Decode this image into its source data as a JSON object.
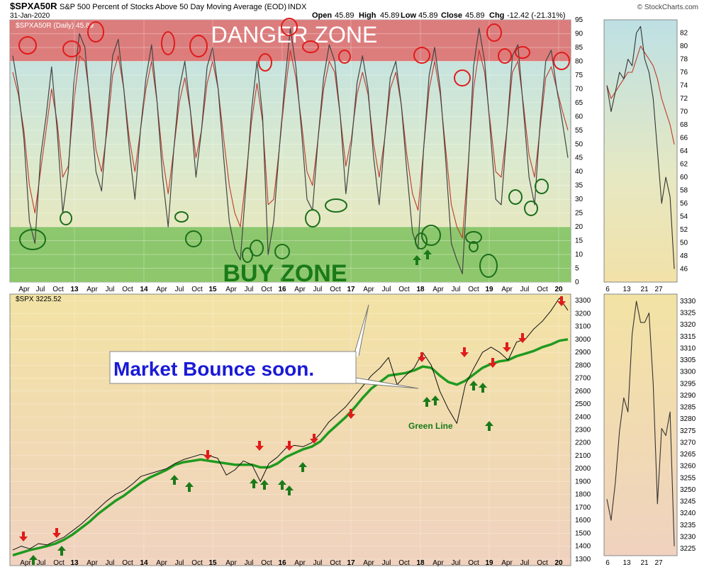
{
  "header": {
    "symbol": "$SPXA50R",
    "description": "S&P 500 Percent of Stocks Above 50 Day Moving Average (EOD)",
    "exchange": "INDX",
    "date": "31-Jan-2020",
    "open_label": "Open",
    "open": "45.89",
    "high_label": "High",
    "high": "45.89",
    "low_label": "Low",
    "low": "45.89",
    "close_label": "Close",
    "close": "45.89",
    "chg_label": "Chg",
    "chg": "-12.42 (-21.31%)",
    "watermark": "© StockCharts.com"
  },
  "chart_data": [
    {
      "type": "line",
      "panel": "top-main",
      "legend": "$SPXA50R (Daily) 45.89",
      "ylim": [
        0,
        95
      ],
      "yticks": [
        0,
        5,
        10,
        15,
        20,
        25,
        30,
        35,
        40,
        45,
        50,
        55,
        60,
        65,
        70,
        75,
        80,
        85,
        90,
        95
      ],
      "x_year_labels": [
        "13",
        "14",
        "15",
        "16",
        "17",
        "18",
        "19",
        "20"
      ],
      "x_month_labels": [
        "Apr",
        "Jul",
        "Oct",
        "Apr",
        "Jul",
        "Oct",
        "Apr",
        "Jul",
        "Oct",
        "Apr",
        "Jul",
        "Oct",
        "Apr",
        "Jul",
        "Oct",
        "Apr",
        "Jul",
        "Oct",
        "Apr",
        "Jul",
        "Oct",
        "Apr",
        "Jul",
        "Oct",
        "Apr",
        "Jul",
        "Oct"
      ],
      "zones": [
        {
          "label": "DANGER ZONE",
          "from": 80,
          "to": 95,
          "color": "#e06b6b"
        },
        {
          "label": "BUY ZONE",
          "from": 0,
          "to": 20,
          "color": "#7cc15f"
        }
      ],
      "series": [
        {
          "values": [
            82,
            70,
            52,
            22,
            14,
            45,
            60,
            78,
            55,
            25,
            40,
            72,
            90,
            85,
            62,
            40,
            33,
            58,
            82,
            88,
            70,
            48,
            30,
            55,
            74,
            86,
            65,
            38,
            20,
            48,
            70,
            80,
            62,
            38,
            55,
            78,
            85,
            70,
            45,
            22,
            12,
            8,
            35,
            62,
            80,
            60,
            10,
            22,
            48,
            72,
            92,
            78,
            55,
            30,
            26,
            52,
            74,
            86,
            80,
            60,
            32,
            50,
            72,
            82,
            70,
            45,
            28,
            52,
            74,
            80,
            64,
            40,
            18,
            12,
            48,
            75,
            85,
            70,
            44,
            14,
            8,
            3,
            40,
            78,
            92,
            80,
            55,
            30,
            28,
            55,
            82,
            86,
            62,
            38,
            28,
            58,
            80,
            84,
            70,
            58,
            45
          ]
        },
        {
          "values": [
            76,
            68,
            55,
            35,
            25,
            40,
            55,
            70,
            58,
            38,
            42,
            65,
            82,
            80,
            65,
            48,
            40,
            55,
            75,
            82,
            70,
            52,
            40,
            55,
            70,
            80,
            65,
            45,
            32,
            48,
            65,
            74,
            62,
            45,
            55,
            72,
            80,
            70,
            52,
            35,
            25,
            20,
            38,
            58,
            72,
            58,
            28,
            30,
            48,
            68,
            84,
            74,
            58,
            40,
            35,
            52,
            70,
            80,
            76,
            60,
            42,
            52,
            68,
            76,
            68,
            50,
            38,
            52,
            70,
            76,
            64,
            46,
            32,
            26,
            48,
            70,
            80,
            68,
            48,
            28,
            20,
            16,
            42,
            70,
            84,
            76,
            58,
            40,
            38,
            55,
            76,
            80,
            64,
            46,
            38,
            56,
            74,
            78,
            70,
            62,
            55
          ]
        }
      ],
      "annotations": [
        "DANGER ZONE",
        "BUY ZONE"
      ]
    },
    {
      "type": "line",
      "panel": "bottom-main",
      "legend": "$SPX 3225.52",
      "ylim": [
        1250,
        3350
      ],
      "yticks": [
        1300,
        1400,
        1500,
        1600,
        1700,
        1800,
        1900,
        2000,
        2100,
        2200,
        2300,
        2400,
        2500,
        2600,
        2700,
        2800,
        2900,
        3000,
        3100,
        3200,
        3300
      ],
      "x_labels": [
        "Apr",
        "Jul",
        "Oct",
        "13",
        "Apr",
        "Jul",
        "Oct",
        "14",
        "Apr",
        "Jul",
        "Oct",
        "15",
        "Apr",
        "Jul",
        "Oct",
        "16",
        "Apr",
        "Jul",
        "Oct",
        "17",
        "Apr",
        "Jul",
        "Oct",
        "18",
        "Apr",
        "Jul",
        "Oct",
        "19",
        "Apr",
        "Jul",
        "Oct",
        "20"
      ],
      "series": [
        {
          "values": [
            1370,
            1400,
            1380,
            1420,
            1410,
            1440,
            1470,
            1520,
            1570,
            1630,
            1690,
            1750,
            1800,
            1830,
            1880,
            1940,
            1960,
            1980,
            2000,
            2040,
            2070,
            2090,
            2110,
            2100,
            2080,
            1950,
            1990,
            2060,
            2030,
            1900,
            2040,
            2090,
            2160,
            2180,
            2170,
            2200,
            2270,
            2360,
            2420,
            2480,
            2560,
            2640,
            2720,
            2780,
            2860,
            2650,
            2720,
            2780,
            2900,
            2800,
            2600,
            2460,
            2350,
            2650,
            2780,
            2900,
            2940,
            2900,
            2840,
            2980,
            3000,
            3080,
            3140,
            3220,
            3320,
            3225
          ]
        },
        {
          "values": [
            1330,
            1350,
            1370,
            1385,
            1400,
            1420,
            1450,
            1490,
            1540,
            1590,
            1650,
            1700,
            1750,
            1790,
            1840,
            1890,
            1930,
            1960,
            1990,
            2030,
            2050,
            2060,
            2070,
            2060,
            2050,
            2040,
            2030,
            2030,
            2030,
            2010,
            2010,
            2040,
            2090,
            2120,
            2150,
            2170,
            2210,
            2280,
            2340,
            2400,
            2470,
            2550,
            2620,
            2670,
            2720,
            2730,
            2740,
            2760,
            2790,
            2780,
            2720,
            2670,
            2650,
            2680,
            2730,
            2780,
            2810,
            2830,
            2840,
            2870,
            2890,
            2910,
            2940,
            2960,
            2990,
            3000
          ]
        }
      ],
      "annotations": [
        "Market Bounce soon.",
        "Green Line"
      ]
    },
    {
      "type": "line",
      "panel": "top-side",
      "ylim": [
        44,
        84
      ],
      "yticks": [
        46,
        48,
        50,
        52,
        54,
        56,
        58,
        60,
        62,
        64,
        66,
        68,
        70,
        72,
        74,
        76,
        78,
        80,
        82
      ],
      "x_labels": [
        "6",
        "13",
        "21",
        "27"
      ],
      "series": [
        {
          "values": [
            74,
            70,
            73,
            76,
            75,
            78,
            77,
            82,
            83,
            78,
            76,
            72,
            64,
            56,
            60,
            57,
            46
          ]
        },
        {
          "values": [
            74,
            72,
            73,
            74,
            75,
            76,
            76,
            78,
            80,
            79,
            78,
            77,
            75,
            72,
            70,
            68,
            65
          ]
        }
      ]
    },
    {
      "type": "line",
      "panel": "bottom-side",
      "ylim": [
        3222,
        3333
      ],
      "yticks": [
        3225,
        3230,
        3235,
        3240,
        3245,
        3250,
        3255,
        3260,
        3265,
        3270,
        3275,
        3280,
        3285,
        3290,
        3295,
        3300,
        3305,
        3310,
        3315,
        3320,
        3325,
        3330
      ],
      "x_labels": [
        "6",
        "13",
        "21",
        "27"
      ],
      "series": [
        {
          "values": [
            3246,
            3237,
            3253,
            3275,
            3289,
            3283,
            3316,
            3330,
            3321,
            3321,
            3325,
            3295,
            3244,
            3276,
            3273,
            3283,
            3226
          ]
        }
      ]
    }
  ]
}
